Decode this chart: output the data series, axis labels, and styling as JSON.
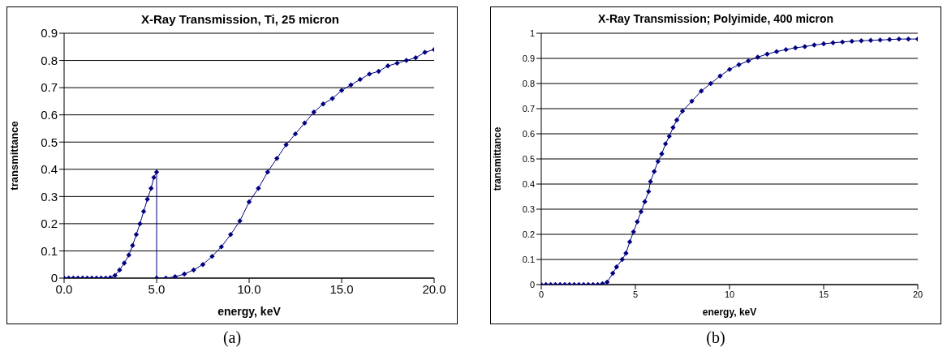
{
  "chart_data": [
    {
      "type": "line",
      "title": "X-Ray Transmission, Ti, 25 micron",
      "xlabel": "energy, keV",
      "ylabel": "transmittance",
      "annotations": [
        "(a)"
      ],
      "marker": "diamond",
      "line_style": "solid",
      "grid": "y",
      "legend": false,
      "xlim": [
        0,
        20
      ],
      "xticks": [
        {
          "value": 0,
          "label": "0.0"
        },
        {
          "value": 5,
          "label": "5.0"
        },
        {
          "value": 10,
          "label": "10.0"
        },
        {
          "value": 15,
          "label": "15.0"
        },
        {
          "value": 20,
          "label": "20.0"
        }
      ],
      "ylim": [
        0,
        0.9
      ],
      "yticks": [
        0,
        0.1,
        0.2,
        0.3,
        0.4,
        0.5,
        0.6,
        0.7,
        0.8,
        0.9
      ],
      "series": [
        {
          "color": "#000080",
          "x": [
            0,
            0.25,
            0.5,
            0.75,
            1,
            1.25,
            1.5,
            1.75,
            2,
            2.25,
            2.5,
            2.75,
            3,
            3.25,
            3.5,
            3.7,
            3.9,
            4.1,
            4.3,
            4.5,
            4.7,
            4.85,
            5,
            5,
            5.5,
            6,
            6.5,
            7,
            7.5,
            8,
            8.5,
            9,
            9.5,
            10,
            10.5,
            11,
            11.5,
            12,
            12.5,
            13,
            13.5,
            14,
            14.5,
            15,
            15.5,
            16,
            16.5,
            17,
            17.5,
            18,
            18.5,
            19,
            19.5,
            20
          ],
          "values": [
            0,
            0,
            0,
            0,
            0,
            0,
            0,
            0,
            0,
            0,
            0.002,
            0.01,
            0.03,
            0.055,
            0.085,
            0.12,
            0.16,
            0.2,
            0.245,
            0.29,
            0.33,
            0.37,
            0.39,
            0,
            0,
            0.005,
            0.015,
            0.03,
            0.05,
            0.08,
            0.115,
            0.16,
            0.21,
            0.28,
            0.33,
            0.39,
            0.44,
            0.49,
            0.53,
            0.57,
            0.61,
            0.64,
            0.66,
            0.69,
            0.71,
            0.73,
            0.75,
            0.76,
            0.78,
            0.79,
            0.8,
            0.81,
            0.83,
            0.84
          ]
        }
      ]
    },
    {
      "type": "line",
      "title": "X-Ray Transmission; Polyimide, 400 micron",
      "xlabel": "energy, keV",
      "ylabel": "transmittance",
      "annotations": [
        "(b)"
      ],
      "marker": "diamond",
      "line_style": "solid",
      "grid": "y",
      "legend": false,
      "xlim": [
        0,
        20
      ],
      "xticks": [
        0,
        5,
        10,
        15,
        20
      ],
      "ylim": [
        0,
        1
      ],
      "yticks": [
        0,
        0.1,
        0.2,
        0.3,
        0.4,
        0.5,
        0.6,
        0.7,
        0.8,
        0.9,
        1
      ],
      "series": [
        {
          "color": "#000080",
          "x": [
            0,
            0.25,
            0.5,
            0.75,
            1,
            1.25,
            1.5,
            1.75,
            2,
            2.25,
            2.5,
            2.75,
            3,
            3.25,
            3.5,
            3.8,
            4,
            4.3,
            4.5,
            4.7,
            4.9,
            5.1,
            5.3,
            5.5,
            5.7,
            5.8,
            6,
            6.2,
            6.4,
            6.6,
            6.8,
            7,
            7.2,
            7.5,
            8,
            8.5,
            9,
            9.5,
            10,
            10.5,
            11,
            11.5,
            12,
            12.5,
            13,
            13.5,
            14,
            14.5,
            15,
            15.5,
            16,
            16.5,
            17,
            17.5,
            18,
            18.5,
            19,
            19.5,
            20
          ],
          "values": [
            0,
            0,
            0,
            0,
            0,
            0,
            0,
            0,
            0,
            0,
            0,
            0,
            0,
            0.003,
            0.01,
            0.045,
            0.07,
            0.1,
            0.125,
            0.17,
            0.21,
            0.25,
            0.29,
            0.33,
            0.37,
            0.41,
            0.45,
            0.49,
            0.52,
            0.56,
            0.59,
            0.625,
            0.655,
            0.69,
            0.73,
            0.77,
            0.8,
            0.83,
            0.856,
            0.875,
            0.89,
            0.905,
            0.917,
            0.927,
            0.935,
            0.942,
            0.947,
            0.953,
            0.958,
            0.962,
            0.965,
            0.968,
            0.97,
            0.972,
            0.973,
            0.975,
            0.977,
            0.977,
            0.977
          ]
        }
      ]
    }
  ]
}
